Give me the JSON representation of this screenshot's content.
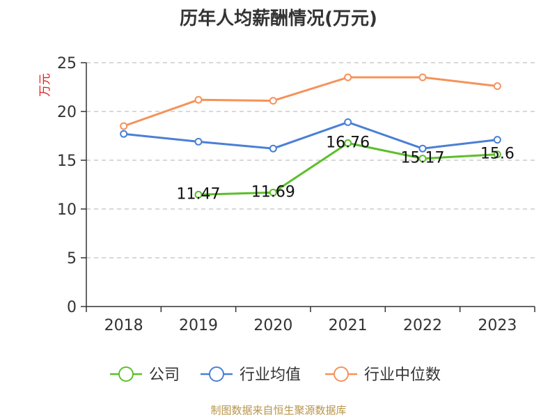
{
  "chart_data": {
    "type": "line",
    "title": "历年人均薪酬情况(万元)",
    "ylabel": "万元",
    "xlabel": "",
    "categories": [
      "2018",
      "2019",
      "2020",
      "2021",
      "2022",
      "2023"
    ],
    "ylim": [
      0,
      25
    ],
    "yticks": [
      0,
      5,
      10,
      15,
      20,
      25
    ],
    "grid": true,
    "legend_position": "bottom",
    "series": [
      {
        "name": "公司",
        "color": "#5cbf2a",
        "values": [
          null,
          11.47,
          11.69,
          16.76,
          15.17,
          15.6
        ],
        "labels": [
          "",
          "11.47",
          "11.69",
          "16.76",
          "15.17",
          "15.6"
        ]
      },
      {
        "name": "行业均值",
        "color": "#4a7fd6",
        "values": [
          17.7,
          16.9,
          16.2,
          18.9,
          16.2,
          17.1
        ]
      },
      {
        "name": "行业中位数",
        "color": "#f5925a",
        "values": [
          18.5,
          21.2,
          21.1,
          23.5,
          23.5,
          22.6
        ]
      }
    ]
  },
  "colors": {
    "unit_label": "#e02020",
    "grid": "#cccccc",
    "axis": "#333333",
    "footer": "#b8944a"
  },
  "footer": {
    "source": "制图数据来自恒生聚源数据库"
  }
}
